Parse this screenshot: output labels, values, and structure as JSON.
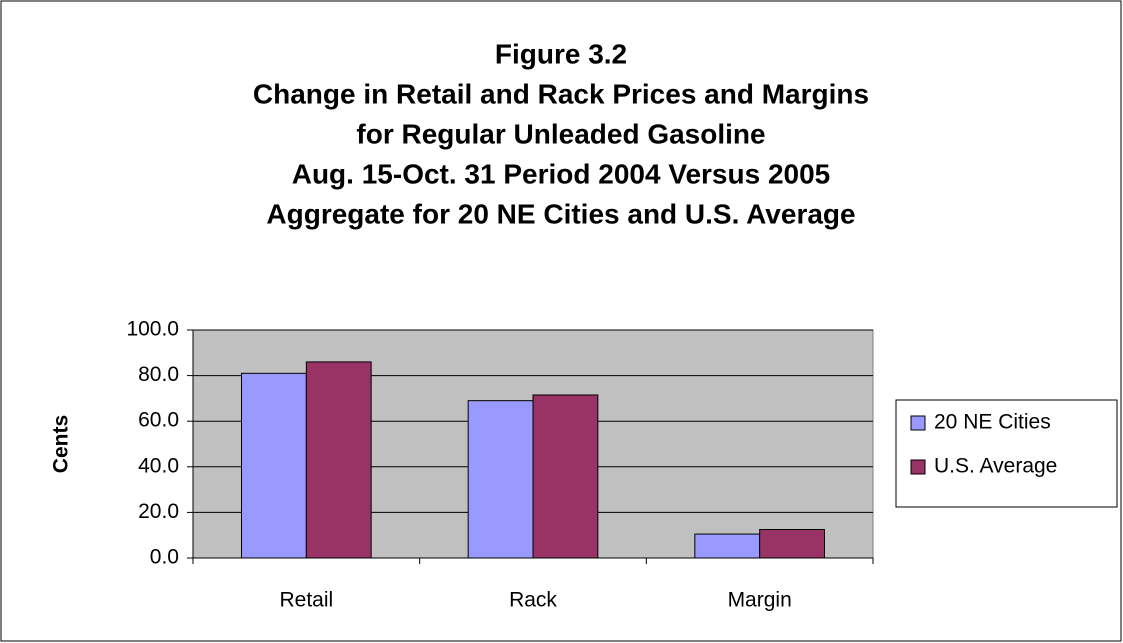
{
  "chart_data": {
    "type": "bar",
    "title": [
      "Figure 3.2",
      "Change in Retail and Rack Prices and Margins",
      "for Regular Unleaded Gasoline",
      "Aug. 15-Oct. 31 Period 2004 Versus 2005",
      "Aggregate for 20 NE Cities and U.S. Average"
    ],
    "y_label": "Cents",
    "categories": [
      "Retail",
      "Rack",
      "Margin"
    ],
    "series": [
      {
        "name": "20 NE Cities",
        "color": "#9999ff",
        "values": [
          81,
          69,
          10.5
        ]
      },
      {
        "name": "U.S. Average",
        "color": "#993366",
        "values": [
          86,
          71.5,
          12.5
        ]
      }
    ],
    "ylim": [
      0,
      100
    ],
    "yticks": [
      {
        "value": 0,
        "label": "0.0"
      },
      {
        "value": 20,
        "label": "20.0"
      },
      {
        "value": 40,
        "label": "40.0"
      },
      {
        "value": 60,
        "label": "60.0"
      },
      {
        "value": 80,
        "label": "80.0"
      },
      {
        "value": 100,
        "label": "100.0"
      }
    ],
    "grid": true,
    "legend": "right",
    "plot_background": "#c0c0c0"
  }
}
